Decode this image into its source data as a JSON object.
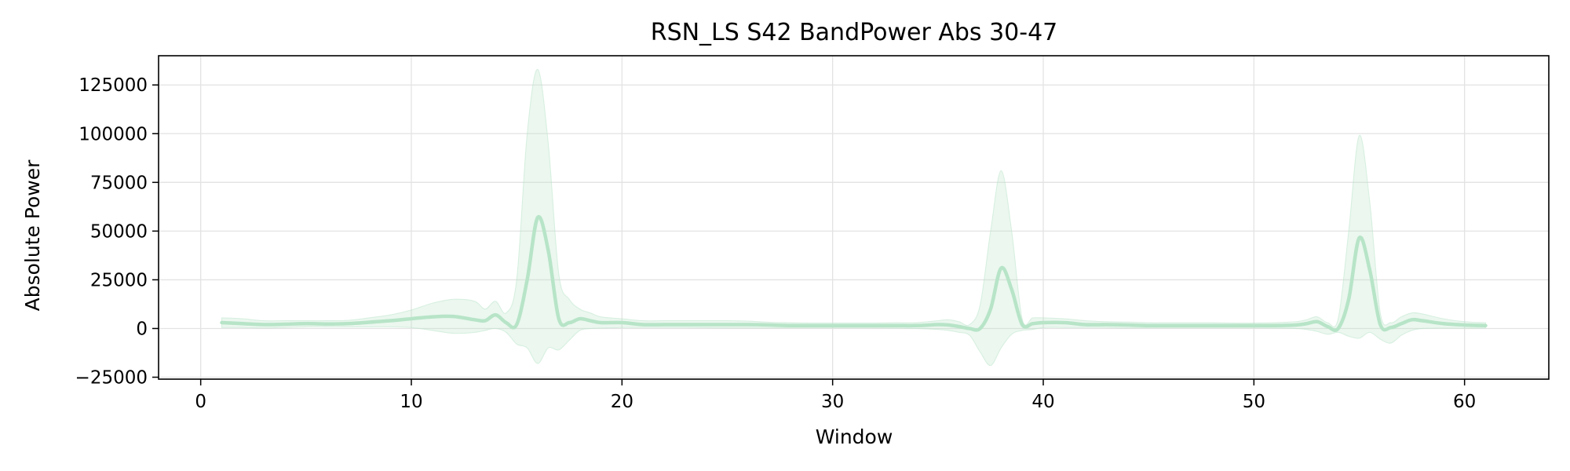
{
  "chart_data": {
    "type": "line",
    "title": "RSN_LS S42 BandPower Abs 30-47",
    "xlabel": "Window",
    "ylabel": "Absolute Power",
    "xlim": [
      -2,
      64
    ],
    "ylim": [
      -26000,
      140000
    ],
    "xticks": [
      0,
      10,
      20,
      30,
      40,
      50,
      60
    ],
    "xtick_labels": [
      "0",
      "10",
      "20",
      "30",
      "40",
      "50",
      "60"
    ],
    "yticks": [
      -25000,
      0,
      25000,
      50000,
      75000,
      100000,
      125000
    ],
    "ytick_labels": [
      "−25000",
      "0",
      "25000",
      "50000",
      "75000",
      "100000",
      "125000"
    ],
    "grid": true,
    "series": [
      {
        "color": "#b7e4c7",
        "band_color": "#b7e4c7",
        "band_opacity": 0.28,
        "x": [
          1,
          2,
          3,
          4,
          5,
          6,
          7,
          8,
          9,
          10,
          11,
          12,
          13,
          13.5,
          14,
          14.5,
          15,
          15.5,
          16,
          16.5,
          17,
          17.5,
          18,
          18.5,
          19,
          20,
          21,
          22,
          23,
          24,
          25,
          26,
          27,
          28,
          29,
          30,
          31,
          32,
          33,
          34,
          35,
          35.5,
          36,
          36.5,
          37,
          37.5,
          38,
          38.5,
          39,
          39.5,
          40,
          41,
          42,
          43,
          44,
          45,
          46,
          47,
          48,
          49,
          50,
          51,
          52,
          52.5,
          53,
          53.5,
          54,
          54.5,
          55,
          55.5,
          56,
          56.5,
          57,
          57.5,
          58,
          59,
          60,
          61
        ],
        "mean": [
          3000,
          2500,
          2000,
          2200,
          2500,
          2300,
          2500,
          3200,
          4000,
          5000,
          6000,
          6200,
          4500,
          4000,
          7000,
          3000,
          2000,
          25000,
          57000,
          40000,
          5000,
          3000,
          5000,
          4000,
          3000,
          3000,
          2000,
          2000,
          2000,
          2000,
          2000,
          2000,
          1800,
          1500,
          1500,
          1500,
          1500,
          1500,
          1500,
          1500,
          2000,
          1800,
          1000,
          0,
          0,
          10000,
          31000,
          20000,
          2000,
          2500,
          3000,
          3000,
          2000,
          2000,
          1800,
          1500,
          1500,
          1500,
          1500,
          1500,
          1500,
          1500,
          1800,
          2500,
          3500,
          1000,
          0,
          15000,
          46500,
          30000,
          2000,
          500,
          2500,
          4500,
          4000,
          2500,
          1800,
          1500
        ],
        "upper": [
          5500,
          5000,
          4000,
          4000,
          4000,
          4000,
          4200,
          5500,
          7000,
          9500,
          13000,
          15000,
          14000,
          10000,
          14000,
          8000,
          25000,
          100000,
          133000,
          95000,
          28000,
          15000,
          10000,
          8000,
          6000,
          5000,
          4000,
          4000,
          4000,
          4000,
          4000,
          3800,
          3200,
          3000,
          2800,
          2800,
          2800,
          2800,
          3000,
          3000,
          4000,
          4500,
          3500,
          2000,
          12000,
          50000,
          81000,
          50000,
          5000,
          5500,
          5500,
          5000,
          4000,
          3500,
          3300,
          3000,
          3000,
          3000,
          3000,
          2800,
          2800,
          3000,
          3500,
          4500,
          6000,
          3000,
          5000,
          50000,
          99000,
          65000,
          8000,
          3000,
          6000,
          8000,
          7500,
          5000,
          3500,
          3000
        ],
        "lower": [
          500,
          500,
          300,
          500,
          800,
          800,
          800,
          800,
          800,
          500,
          -1000,
          -2500,
          -2000,
          -1000,
          0,
          -2000,
          -8000,
          -10000,
          -18000,
          -10000,
          -11000,
          -6000,
          -1000,
          0,
          200,
          500,
          500,
          500,
          500,
          400,
          300,
          300,
          300,
          300,
          300,
          300,
          300,
          300,
          200,
          0,
          -500,
          -1000,
          -2000,
          -3500,
          -12000,
          -19000,
          -10000,
          -3000,
          -1000,
          -500,
          500,
          500,
          500,
          500,
          300,
          300,
          300,
          300,
          300,
          300,
          300,
          200,
          0,
          -500,
          -1500,
          -3000,
          -2000,
          -4000,
          -5000,
          -2000,
          -5500,
          -7500,
          -3500,
          -1000,
          0,
          200,
          200,
          200
        ]
      }
    ]
  }
}
